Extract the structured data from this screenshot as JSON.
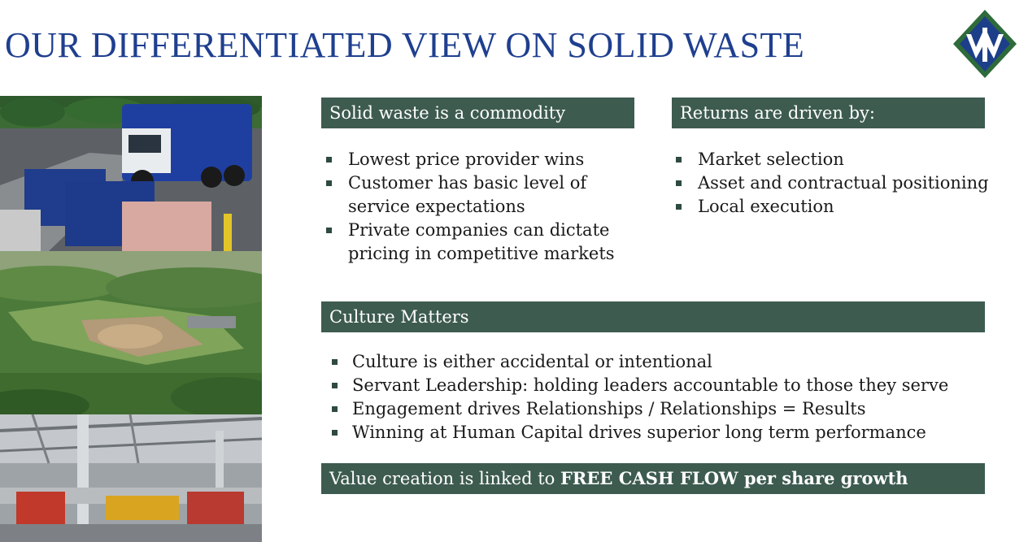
{
  "title": "OUR DIFFERENTIATED VIEW ON SOLID WASTE",
  "colors": {
    "title": "#1f3f8f",
    "header_bg": "#3d5b4f",
    "logo_green": "#2e6b3a",
    "logo_blue": "#1d3f8a"
  },
  "left_box": {
    "header": "Solid waste is a commodity",
    "bullets": [
      "Lowest price provider wins",
      "Customer has basic level of service expectations",
      "Private companies can dictate pricing in competitive markets"
    ]
  },
  "right_box": {
    "header": "Returns are driven by:",
    "bullets": [
      "Market selection",
      "Asset and contractual positioning",
      "Local execution"
    ]
  },
  "culture": {
    "header": "Culture Matters",
    "bullets": [
      "Culture is either accidental or intentional",
      "Servant Leadership: holding leaders accountable to those they serve",
      "Engagement drives Relationships / Relationships = Results",
      "Winning at Human Capital drives superior long term performance"
    ]
  },
  "value_bar": {
    "prefix": "Value creation is linked to ",
    "emphasis": "FREE CASH FLOW per share growth"
  }
}
